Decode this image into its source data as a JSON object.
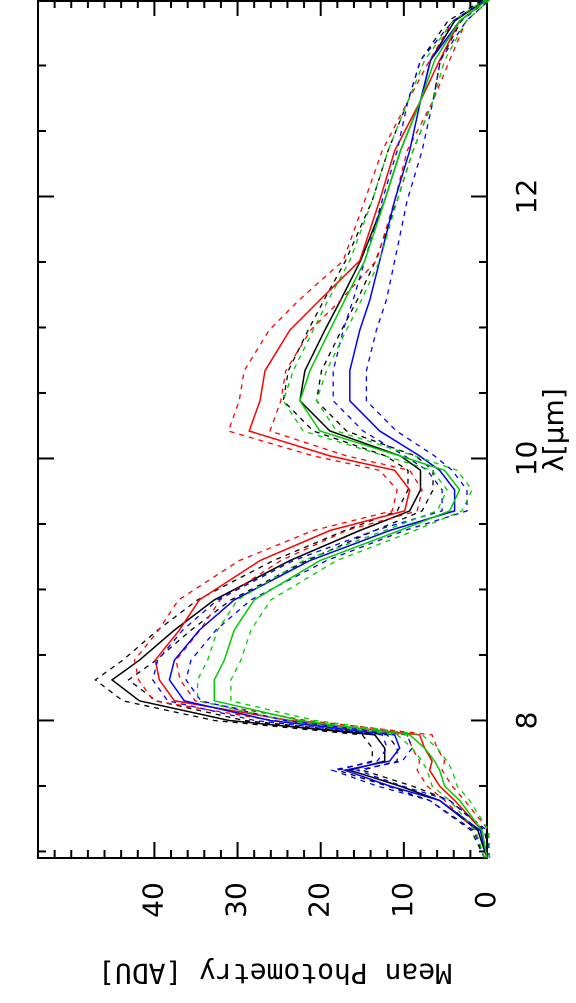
{
  "chart_data": {
    "type": "line",
    "x_label": "λ[μm]",
    "y_label": "Mean Photometry [ADU]",
    "x": [
      6.95,
      7.16,
      7.39,
      7.5,
      7.62,
      7.69,
      7.79,
      7.89,
      8.0,
      8.15,
      8.31,
      8.46,
      8.69,
      8.92,
      9.22,
      9.45,
      9.6,
      9.76,
      9.91,
      10.02,
      10.21,
      10.44,
      10.67,
      10.98,
      11.21,
      11.51,
      11.97,
      12.35,
      12.73,
      13.04,
      13.34,
      13.5
    ],
    "xlim": [
      6.95,
      13.5
    ],
    "ylim": [
      0,
      54
    ],
    "xticks": [
      8,
      10,
      12
    ],
    "xminorticks": [
      7,
      7.5,
      8.5,
      9,
      9.5,
      10.5,
      11,
      11.5,
      12.5,
      13
    ],
    "yticks": [
      0,
      10,
      20,
      30,
      40
    ],
    "yminorticks": [
      2,
      4,
      6,
      8,
      12,
      14,
      16,
      18,
      22,
      24,
      26,
      28,
      32,
      34,
      36,
      38,
      42,
      44,
      46,
      48,
      50,
      52
    ],
    "series": [
      {
        "color": "#000000",
        "values": [
          0,
          1.1,
          5.7,
          10.5,
          16.5,
          12.3,
          12.3,
          13.5,
          31,
          41.8,
          45.1,
          41.8,
          37.6,
          32.8,
          23.7,
          15.3,
          9.3,
          8.0,
          8.0,
          10.4,
          18.9,
          22.5,
          21.9,
          19.5,
          17.6,
          15.2,
          12.3,
          10.4,
          8.0,
          6.8,
          3.9,
          0.2
        ],
        "errors": [
          0.3,
          0.8,
          1.2,
          1.5,
          1.5,
          1.5,
          1.5,
          1.5,
          1.8,
          2,
          2,
          2,
          2,
          2,
          2,
          1.8,
          1.5,
          1.5,
          1.5,
          1.8,
          2,
          2,
          2,
          2,
          2,
          1.8,
          1.5,
          1.5,
          1.5,
          1.2,
          0.8,
          0.3
        ]
      },
      {
        "color": "#ff0000",
        "values": [
          0,
          0.6,
          3.9,
          5.7,
          6.9,
          6.6,
          7.5,
          8.1,
          23.7,
          37.6,
          39.4,
          39.9,
          37.0,
          34.6,
          27.3,
          18.9,
          9.9,
          9.3,
          11.1,
          18.9,
          28.6,
          27.3,
          26.7,
          23.7,
          20.1,
          15.3,
          12.9,
          11.1,
          8.0,
          5.7,
          3.3,
          0
        ],
        "errors": [
          0.3,
          0.8,
          1.2,
          1.5,
          1.5,
          1.5,
          1.5,
          1.5,
          2,
          2.5,
          2.5,
          2.5,
          2.5,
          2.5,
          2.5,
          2,
          1.5,
          1.5,
          1.8,
          2,
          2.5,
          2.5,
          2.5,
          2.5,
          2.5,
          2,
          1.8,
          1.5,
          1.5,
          1.2,
          0.8,
          0.3
        ]
      },
      {
        "color": "#0000ff",
        "values": [
          0,
          0.8,
          5.7,
          11.7,
          17.1,
          11.7,
          10.5,
          11.1,
          26.1,
          36.4,
          38.2,
          37.6,
          34.6,
          30.4,
          21.3,
          11.7,
          3.9,
          3.9,
          5.7,
          8.1,
          12.9,
          16.5,
          16.5,
          15.3,
          14.1,
          12.9,
          11.1,
          9.3,
          8.0,
          6.8,
          3.3,
          0
        ],
        "errors": [
          0.3,
          0.8,
          1.2,
          1.5,
          1.5,
          1.5,
          1.5,
          1.5,
          1.8,
          2,
          2,
          2,
          2,
          2,
          2,
          1.8,
          1.5,
          1.5,
          1.5,
          1.8,
          2,
          2,
          2,
          2,
          2,
          1.8,
          1.5,
          1.5,
          1.5,
          1.2,
          0.8,
          0.3
        ]
      },
      {
        "color": "#00cc00",
        "values": [
          0,
          0.6,
          3.3,
          5.1,
          5.7,
          6.3,
          7.5,
          9.3,
          22.5,
          32.8,
          32.8,
          31.6,
          30.4,
          28.0,
          20.1,
          10.5,
          4.5,
          3.3,
          5.1,
          10.5,
          20.1,
          22.5,
          21.3,
          18.9,
          17.1,
          14.7,
          12.3,
          10.4,
          8.0,
          6.3,
          3.3,
          0
        ],
        "errors": [
          0.3,
          0.8,
          1.2,
          1.5,
          1.5,
          1.5,
          1.5,
          1.5,
          1.8,
          2,
          2,
          2,
          2,
          2,
          2,
          1.8,
          1.5,
          1.5,
          1.5,
          1.8,
          2,
          2,
          2,
          2,
          2,
          1.8,
          1.5,
          1.5,
          1.5,
          1.2,
          0.8,
          0.3
        ]
      }
    ]
  }
}
